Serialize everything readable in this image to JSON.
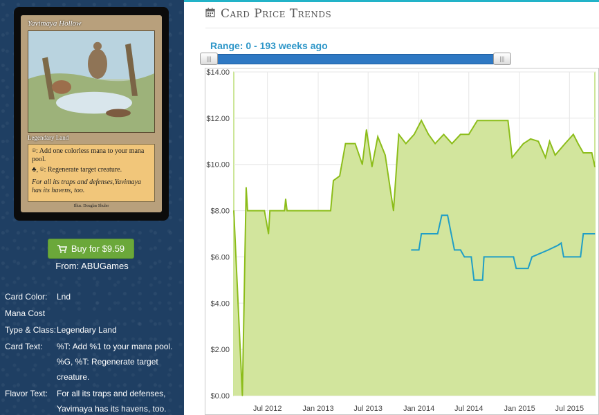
{
  "card": {
    "name": "Yavimaya Hollow",
    "type_line": "Legendary Land",
    "rules_line1": "⌾: Add one colorless mana to your mana pool.",
    "rules_line2": "♣, ⌾: Regenerate target creature.",
    "flavor": "For all its traps and defenses,Yavimaya has its havens, too.",
    "credit": "Illus. Douglas Shuler"
  },
  "buy": {
    "label": "Buy for $9.59",
    "from": "From: ABUGames"
  },
  "attributes": [
    {
      "label": "Card Color:",
      "value": "Lnd"
    },
    {
      "label": "Mana Cost",
      "value": ""
    },
    {
      "label": "Type & Class:",
      "value": "Legendary Land"
    },
    {
      "label": "Card Text:",
      "value": "%T: Add %1 to your mana pool. %G, %T: Regenerate target creature."
    },
    {
      "label": "Flavor Text:",
      "value": "For all its traps and defenses, Yavimaya has its havens, too."
    }
  ],
  "section": {
    "title": "Card Price Trends"
  },
  "range": {
    "label": "Range: 0 - 193 weeks ago",
    "min_weeks": 0,
    "max_weeks": 193
  },
  "colors": {
    "accent": "#22b3c8",
    "range_text": "#2d96c8",
    "green_line": "#8cbd1a",
    "green_fill": "#d2e59d",
    "blue_line": "#1f9ec6",
    "button": "#6ba83a"
  },
  "chart_data": {
    "type": "line",
    "ylim": [
      0,
      14
    ],
    "y_ticks": [
      "$0.00",
      "$2.00",
      "$4.00",
      "$6.00",
      "$8.00",
      "$10.00",
      "$12.00",
      "$14.00"
    ],
    "x_ticks": [
      "Jul 2012",
      "Jan 2013",
      "Jul 2013",
      "Jan 2014",
      "Jul 2014",
      "Jan 2015",
      "Jul 2015"
    ],
    "x_range": [
      "2012-03-01",
      "2015-10-01"
    ],
    "grid": true,
    "series": [
      {
        "style": "area",
        "points": [
          [
            "2012-03-01",
            8.0
          ],
          [
            "2012-04-01",
            0.0
          ],
          [
            "2012-04-15",
            9.0
          ],
          [
            "2012-04-20",
            8.0
          ],
          [
            "2012-06-20",
            8.0
          ],
          [
            "2012-07-05",
            7.0
          ],
          [
            "2012-07-10",
            8.0
          ],
          [
            "2012-09-01",
            8.0
          ],
          [
            "2012-09-05",
            8.5
          ],
          [
            "2012-09-10",
            8.0
          ],
          [
            "2013-02-15",
            8.0
          ],
          [
            "2013-02-25",
            9.3
          ],
          [
            "2013-03-20",
            9.5
          ],
          [
            "2013-04-10",
            10.9
          ],
          [
            "2013-05-15",
            10.9
          ],
          [
            "2013-06-10",
            10.0
          ],
          [
            "2013-06-25",
            11.5
          ],
          [
            "2013-07-15",
            9.9
          ],
          [
            "2013-08-05",
            11.2
          ],
          [
            "2013-09-01",
            10.4
          ],
          [
            "2013-10-01",
            8.0
          ],
          [
            "2013-10-20",
            11.3
          ],
          [
            "2013-11-15",
            10.9
          ],
          [
            "2013-12-15",
            11.3
          ],
          [
            "2014-01-10",
            11.9
          ],
          [
            "2014-02-05",
            11.3
          ],
          [
            "2014-03-01",
            10.9
          ],
          [
            "2014-04-01",
            11.3
          ],
          [
            "2014-05-01",
            10.9
          ],
          [
            "2014-06-01",
            11.3
          ],
          [
            "2014-07-01",
            11.3
          ],
          [
            "2014-08-01",
            11.9
          ],
          [
            "2014-11-20",
            11.9
          ],
          [
            "2014-12-05",
            10.3
          ],
          [
            "2015-01-15",
            10.9
          ],
          [
            "2015-02-10",
            11.1
          ],
          [
            "2015-03-10",
            11.0
          ],
          [
            "2015-04-05",
            10.3
          ],
          [
            "2015-04-20",
            11.0
          ],
          [
            "2015-05-10",
            10.4
          ],
          [
            "2015-06-15",
            10.9
          ],
          [
            "2015-07-15",
            11.3
          ],
          [
            "2015-08-01",
            10.9
          ],
          [
            "2015-08-20",
            10.5
          ],
          [
            "2015-09-20",
            10.5
          ],
          [
            "2015-10-01",
            9.9
          ]
        ]
      },
      {
        "style": "line",
        "points": [
          [
            "2013-12-05",
            6.3
          ],
          [
            "2014-01-01",
            6.3
          ],
          [
            "2014-01-10",
            7.0
          ],
          [
            "2014-03-10",
            7.0
          ],
          [
            "2014-03-25",
            7.8
          ],
          [
            "2014-04-15",
            7.8
          ],
          [
            "2014-04-25",
            7.2
          ],
          [
            "2014-05-10",
            6.3
          ],
          [
            "2014-06-01",
            6.3
          ],
          [
            "2014-06-15",
            6.0
          ],
          [
            "2014-07-10",
            6.0
          ],
          [
            "2014-07-20",
            5.0
          ],
          [
            "2014-08-20",
            5.0
          ],
          [
            "2014-08-25",
            6.0
          ],
          [
            "2014-12-10",
            6.0
          ],
          [
            "2014-12-20",
            5.5
          ],
          [
            "2015-02-01",
            5.5
          ],
          [
            "2015-02-15",
            6.0
          ],
          [
            "2015-04-15",
            6.3
          ],
          [
            "2015-05-20",
            6.5
          ],
          [
            "2015-06-01",
            6.6
          ],
          [
            "2015-06-10",
            6.0
          ],
          [
            "2015-08-10",
            6.0
          ],
          [
            "2015-08-20",
            7.0
          ],
          [
            "2015-10-01",
            7.0
          ]
        ]
      }
    ]
  }
}
